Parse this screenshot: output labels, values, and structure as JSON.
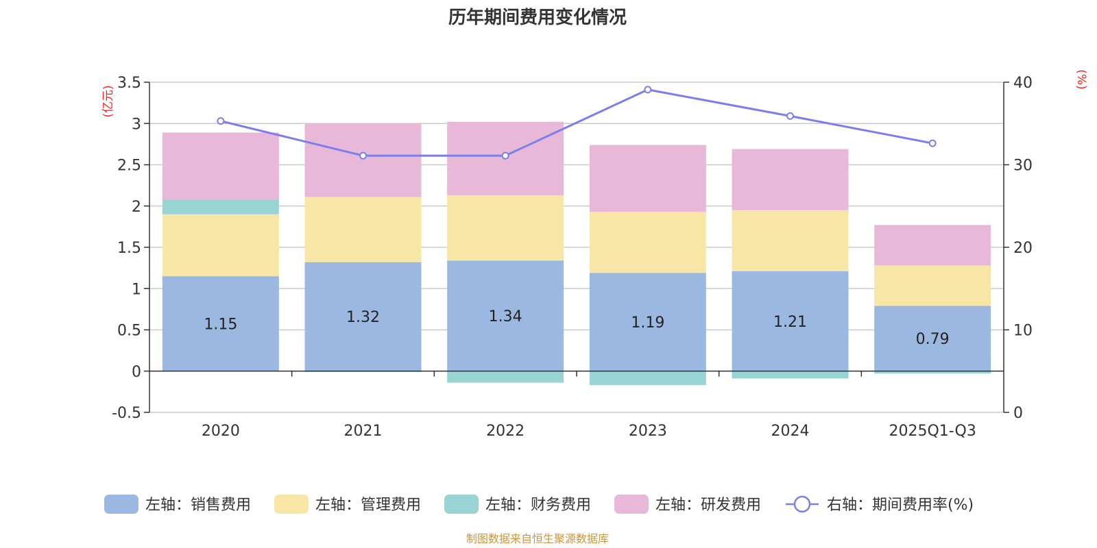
{
  "chart_data": {
    "type": "bar",
    "stacked": true,
    "title": "历年期间费用变化情况",
    "categories": [
      "2020",
      "2021",
      "2022",
      "2023",
      "2024",
      "2025Q1-Q3"
    ],
    "left_axis": {
      "unit": "(亿元)",
      "ylim": [
        -0.5,
        3.5
      ],
      "ticks": [
        3.5,
        3,
        2.5,
        2,
        1.5,
        1,
        0.5,
        0,
        -0.5
      ],
      "tick_labels": [
        "3.5",
        "3",
        "2.5",
        "2",
        "1.5",
        "1",
        "0.5",
        "0",
        "-0.5"
      ]
    },
    "right_axis": {
      "unit": "(%)",
      "ylim": [
        0,
        40
      ],
      "ticks": [
        40,
        30,
        20,
        10,
        0
      ],
      "tick_labels": [
        "40",
        "30",
        "20",
        "10",
        "0"
      ]
    },
    "series": [
      {
        "name": "左轴：销售费用",
        "type": "bar",
        "axis": "left",
        "color": "#9bb8e0",
        "values": [
          1.15,
          1.32,
          1.34,
          1.19,
          1.21,
          0.79
        ],
        "labels": [
          "1.15",
          "1.32",
          "1.34",
          "1.19",
          "1.21",
          "0.79"
        ]
      },
      {
        "name": "左轴：管理费用",
        "type": "bar",
        "axis": "left",
        "color": "#f8e6a6",
        "values": [
          0.75,
          0.79,
          0.79,
          0.74,
          0.74,
          0.49
        ]
      },
      {
        "name": "左轴：财务费用",
        "type": "bar",
        "axis": "left",
        "color": "#98d4d4",
        "values": [
          0.18,
          -0.01,
          -0.14,
          -0.17,
          -0.09,
          -0.03
        ]
      },
      {
        "name": "左轴：研发费用",
        "type": "bar",
        "axis": "left",
        "color": "#e8b8d8",
        "values": [
          0.81,
          0.89,
          0.89,
          0.81,
          0.74,
          0.49
        ]
      },
      {
        "name": "右轴：期间费用率(%)",
        "type": "line",
        "axis": "right",
        "color": "#7b7fec",
        "values": [
          35.3,
          31.1,
          31.1,
          39.1,
          35.9,
          32.6
        ]
      }
    ],
    "source": "制图数据来自恒生聚源数据库"
  }
}
